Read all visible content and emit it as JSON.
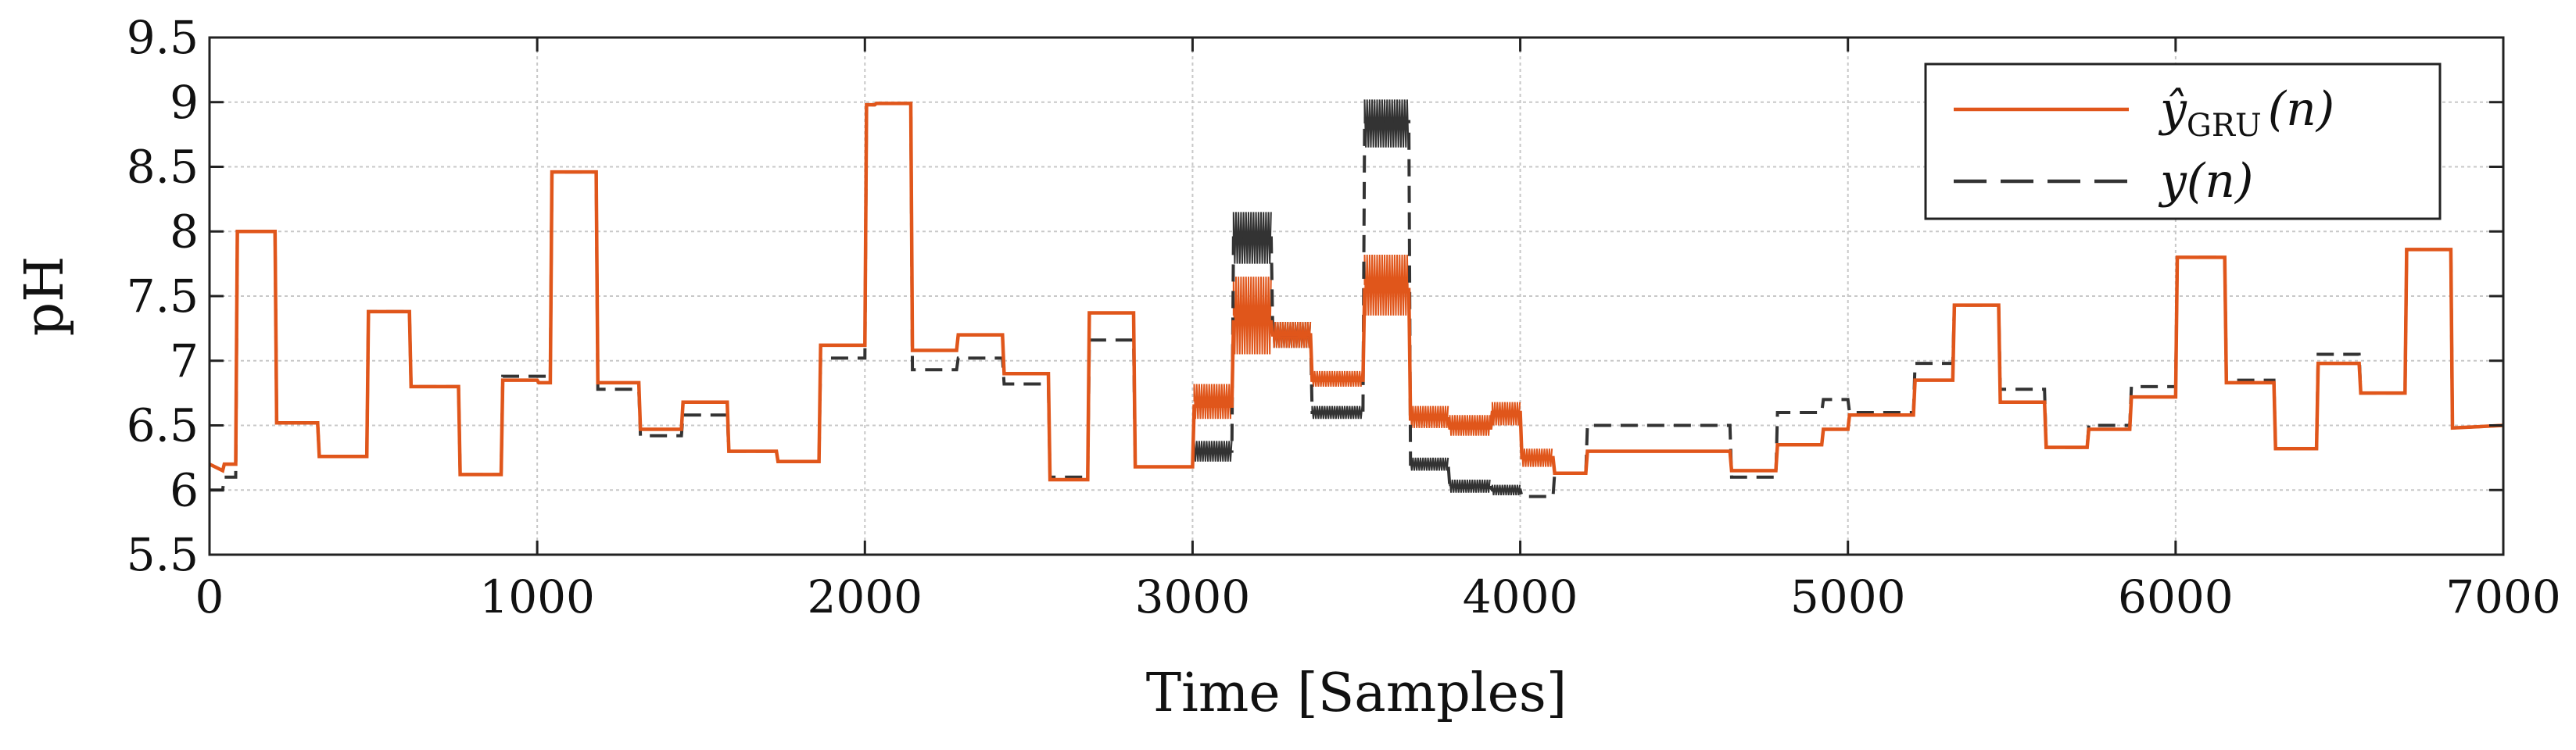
{
  "chart_data": {
    "type": "line",
    "title": "",
    "xlabel": "Time [Samples]",
    "ylabel": "pH",
    "xlim": [
      0,
      7000
    ],
    "ylim": [
      5.5,
      9.5
    ],
    "xticks": [
      0,
      1000,
      2000,
      3000,
      4000,
      5000,
      6000,
      7000
    ],
    "yticks": [
      5.5,
      6,
      6.5,
      7,
      7.5,
      8,
      8.5,
      9,
      9.5
    ],
    "xtick_labels": [
      "0",
      "1000",
      "2000",
      "3000",
      "4000",
      "5000",
      "6000",
      "7000"
    ],
    "ytick_labels": [
      "5.5",
      "6",
      "6.5",
      "7",
      "7.5",
      "8",
      "8.5",
      "9",
      "9.5"
    ],
    "grid": true,
    "legend_position": "top-right",
    "series": [
      {
        "name": "ŷGRU(n)",
        "legend_main": "ŷ",
        "legend_sub": "GRU",
        "legend_tail": "(n)",
        "color": "#e0561b",
        "style": "solid",
        "x": [
          0,
          40,
          45,
          80,
          85,
          200,
          205,
          330,
          335,
          480,
          485,
          610,
          615,
          760,
          765,
          890,
          895,
          1000,
          1005,
          1040,
          1045,
          1180,
          1185,
          1310,
          1315,
          1440,
          1445,
          1580,
          1585,
          1730,
          1735,
          1860,
          1865,
          2000,
          2005,
          2030,
          2035,
          2140,
          2145,
          2280,
          2285,
          2420,
          2425,
          2560,
          2565,
          2680,
          2685,
          2820,
          2825,
          3000,
          3005,
          3120,
          3125,
          3240,
          3245,
          3360,
          3365,
          3520,
          3525,
          3660,
          3665,
          3780,
          3785,
          3910,
          3915,
          4000,
          4005,
          4100,
          4105,
          4200,
          4205,
          4640,
          4645,
          4780,
          4785,
          4920,
          4925,
          5000,
          5005,
          5200,
          5205,
          5320,
          5325,
          5460,
          5465,
          5600,
          5605,
          5730,
          5735,
          5860,
          5865,
          6000,
          6005,
          6020,
          6025,
          6150,
          6155,
          6300,
          6305,
          6430,
          6435,
          6560,
          6565,
          6700,
          6705,
          6840,
          6845,
          7000
        ],
        "y": [
          6.2,
          6.15,
          6.2,
          6.2,
          8.0,
          8.0,
          6.52,
          6.52,
          6.26,
          6.26,
          7.38,
          7.38,
          6.8,
          6.8,
          6.12,
          6.12,
          6.85,
          6.85,
          6.83,
          6.83,
          8.46,
          8.46,
          6.83,
          6.83,
          6.47,
          6.47,
          6.68,
          6.68,
          6.3,
          6.3,
          6.22,
          6.22,
          7.12,
          7.12,
          8.98,
          8.98,
          8.99,
          8.99,
          7.08,
          7.08,
          7.2,
          7.2,
          6.9,
          6.9,
          6.08,
          6.08,
          7.37,
          7.37,
          6.18,
          6.18,
          6.65,
          6.65,
          7.3,
          7.3,
          7.2,
          7.2,
          6.85,
          6.85,
          7.55,
          7.55,
          6.55,
          6.55,
          6.48,
          6.48,
          6.6,
          6.6,
          6.25,
          6.25,
          6.13,
          6.13,
          6.3,
          6.3,
          6.15,
          6.15,
          6.35,
          6.35,
          6.47,
          6.47,
          6.58,
          6.58,
          6.85,
          6.85,
          7.43,
          7.43,
          6.68,
          6.68,
          6.33,
          6.33,
          6.47,
          6.47,
          6.72,
          6.72,
          7.8,
          7.8,
          7.8,
          7.8,
          6.83,
          6.83,
          6.32,
          6.32,
          6.98,
          6.98,
          6.75,
          6.75,
          7.86,
          7.86,
          6.48,
          6.5
        ]
      },
      {
        "name": "y(n)",
        "legend_main": "y",
        "legend_sub": "",
        "legend_tail": "(n)",
        "color": "#333333",
        "style": "dashed",
        "x": [
          0,
          40,
          45,
          80,
          85,
          200,
          205,
          330,
          335,
          480,
          485,
          610,
          615,
          760,
          765,
          890,
          895,
          1000,
          1005,
          1040,
          1045,
          1180,
          1185,
          1310,
          1315,
          1440,
          1445,
          1580,
          1585,
          1730,
          1735,
          1860,
          1865,
          2000,
          2005,
          2030,
          2035,
          2140,
          2145,
          2280,
          2285,
          2420,
          2425,
          2560,
          2565,
          2680,
          2685,
          2820,
          2825,
          3000,
          3005,
          3120,
          3125,
          3240,
          3245,
          3360,
          3365,
          3520,
          3525,
          3660,
          3665,
          3780,
          3785,
          3910,
          3915,
          4000,
          4005,
          4100,
          4105,
          4200,
          4205,
          4640,
          4645,
          4780,
          4785,
          4920,
          4925,
          5000,
          5005,
          5200,
          5205,
          5320,
          5325,
          5460,
          5465,
          5600,
          5605,
          5730,
          5735,
          5860,
          5865,
          6000,
          6005,
          6020,
          6025,
          6150,
          6155,
          6300,
          6305,
          6430,
          6435,
          6560,
          6565,
          6700,
          6705,
          6840,
          6845,
          7000
        ],
        "y": [
          6.0,
          6.0,
          6.1,
          6.1,
          8.0,
          8.0,
          6.52,
          6.52,
          6.26,
          6.26,
          7.38,
          7.38,
          6.8,
          6.8,
          6.12,
          6.12,
          6.88,
          6.88,
          6.88,
          6.88,
          8.46,
          8.46,
          6.78,
          6.78,
          6.42,
          6.42,
          6.58,
          6.58,
          6.3,
          6.3,
          6.22,
          6.22,
          7.02,
          7.02,
          8.98,
          8.98,
          8.99,
          8.99,
          6.93,
          6.93,
          7.02,
          7.02,
          6.82,
          6.82,
          6.1,
          6.1,
          7.16,
          7.16,
          6.18,
          6.18,
          6.3,
          6.3,
          7.95,
          7.95,
          7.2,
          7.2,
          6.6,
          6.6,
          8.85,
          8.85,
          6.2,
          6.2,
          6.02,
          6.02,
          6.0,
          6.0,
          5.95,
          5.95,
          6.13,
          6.13,
          6.5,
          6.5,
          6.1,
          6.1,
          6.6,
          6.6,
          6.7,
          6.7,
          6.6,
          6.6,
          6.98,
          6.98,
          7.43,
          7.43,
          6.78,
          6.78,
          6.33,
          6.33,
          6.5,
          6.5,
          6.8,
          6.8,
          7.8,
          7.8,
          7.8,
          7.8,
          6.85,
          6.85,
          6.32,
          6.32,
          7.05,
          7.05,
          6.75,
          6.75,
          7.86,
          7.86,
          6.48,
          6.5
        ]
      }
    ],
    "oscillation_bands": [
      {
        "series": "y(n)",
        "x_start": 3005,
        "x_end": 3120,
        "low": 6.22,
        "high": 6.38
      },
      {
        "series": "y(n)",
        "x_start": 3125,
        "x_end": 3240,
        "low": 7.75,
        "high": 8.15
      },
      {
        "series": "y(n)",
        "x_start": 3245,
        "x_end": 3360,
        "low": 7.1,
        "high": 7.3
      },
      {
        "series": "y(n)",
        "x_start": 3365,
        "x_end": 3520,
        "low": 6.55,
        "high": 6.65
      },
      {
        "series": "y(n)",
        "x_start": 3525,
        "x_end": 3660,
        "low": 8.65,
        "high": 9.02
      },
      {
        "series": "y(n)",
        "x_start": 3665,
        "x_end": 3780,
        "low": 6.15,
        "high": 6.25
      },
      {
        "series": "y(n)",
        "x_start": 3785,
        "x_end": 3910,
        "low": 5.98,
        "high": 6.08
      },
      {
        "series": "y(n)",
        "x_start": 3915,
        "x_end": 4000,
        "low": 5.96,
        "high": 6.04
      },
      {
        "series": "ŷGRU(n)",
        "x_start": 3005,
        "x_end": 3120,
        "low": 6.55,
        "high": 6.82
      },
      {
        "series": "ŷGRU(n)",
        "x_start": 3125,
        "x_end": 3240,
        "low": 7.05,
        "high": 7.65
      },
      {
        "series": "ŷGRU(n)",
        "x_start": 3245,
        "x_end": 3360,
        "low": 7.1,
        "high": 7.3
      },
      {
        "series": "ŷGRU(n)",
        "x_start": 3365,
        "x_end": 3520,
        "low": 6.8,
        "high": 6.92
      },
      {
        "series": "ŷGRU(n)",
        "x_start": 3525,
        "x_end": 3660,
        "low": 7.35,
        "high": 7.82
      },
      {
        "series": "ŷGRU(n)",
        "x_start": 3665,
        "x_end": 3780,
        "low": 6.48,
        "high": 6.65
      },
      {
        "series": "ŷGRU(n)",
        "x_start": 3785,
        "x_end": 3910,
        "low": 6.42,
        "high": 6.58
      },
      {
        "series": "ŷGRU(n)",
        "x_start": 3915,
        "x_end": 4000,
        "low": 6.5,
        "high": 6.68
      },
      {
        "series": "ŷGRU(n)",
        "x_start": 4005,
        "x_end": 4100,
        "low": 6.18,
        "high": 6.32
      }
    ]
  }
}
